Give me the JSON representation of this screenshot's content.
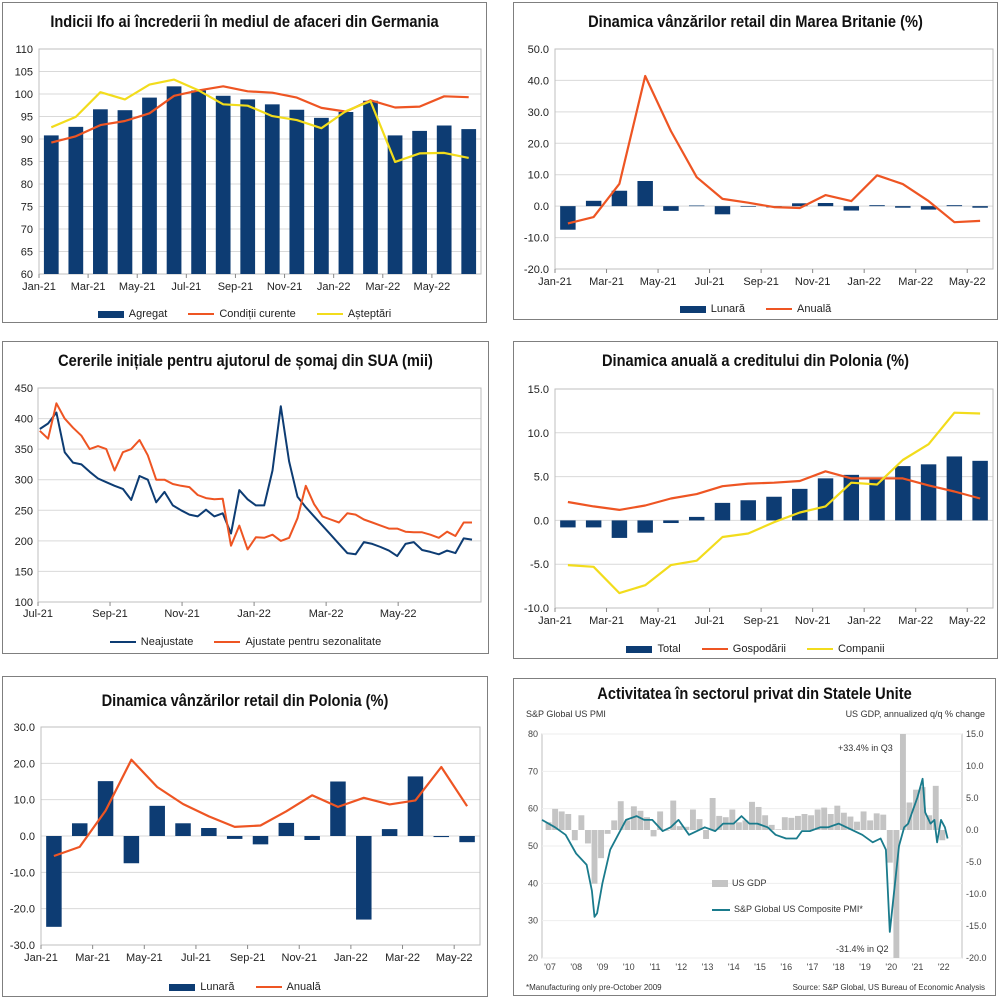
{
  "colors": {
    "navy": "#0d3c73",
    "orange": "#ee5523",
    "yellow": "#f2dc1c",
    "grid": "#d9d9d9",
    "teal": "#1a7b8c",
    "gray": "#c4c4c4"
  },
  "chart_data": [
    {
      "id": "ifo",
      "type": "bar+line",
      "title": "Indicii Ifo ai încrederii în mediul de afaceri din Germania",
      "categories": [
        "Jan-21",
        "Feb-21",
        "Mar-21",
        "Apr-21",
        "May-21",
        "Jun-21",
        "Jul-21",
        "Aug-21",
        "Sep-21",
        "Oct-21",
        "Nov-21",
        "Dec-21",
        "Jan-22",
        "Feb-22",
        "Mar-22",
        "Apr-22",
        "May-22",
        "Jun-22"
      ],
      "tick_labels": [
        "Jan-21",
        "Mar-21",
        "May-21",
        "Jul-21",
        "Sep-21",
        "Nov-21",
        "Jan-22",
        "Mar-22",
        "May-22"
      ],
      "ylim": [
        60,
        110
      ],
      "yticks": [
        60,
        65,
        70,
        75,
        80,
        85,
        90,
        95,
        100,
        105,
        110
      ],
      "ydec": 0,
      "bars": {
        "name": "Agregat",
        "values": [
          90.8,
          92.7,
          96.6,
          96.4,
          99.2,
          101.7,
          100.8,
          99.6,
          98.8,
          97.7,
          96.5,
          94.7,
          96.0,
          98.5,
          90.8,
          91.8,
          93.0,
          92.2
        ]
      },
      "lines": [
        {
          "name": "Condiții curente",
          "color": "orange",
          "values": [
            89.2,
            90.6,
            93.1,
            94.0,
            95.7,
            99.6,
            100.8,
            101.7,
            100.6,
            100.3,
            99.2,
            96.9,
            96.1,
            98.6,
            97.0,
            97.2,
            99.5,
            99.3
          ]
        },
        {
          "name": "Așteptări",
          "color": "yellow",
          "values": [
            92.6,
            94.9,
            100.4,
            98.8,
            102.1,
            103.2,
            100.8,
            97.7,
            97.4,
            95.1,
            94.2,
            92.4,
            96.2,
            98.4,
            84.9,
            86.8,
            86.9,
            85.8
          ]
        }
      ],
      "legend": [
        "Agregat",
        "Condiții curente",
        "Așteptări"
      ]
    },
    {
      "id": "uk",
      "type": "bar+line",
      "title": "Dinamica vânzărilor retail din Marea Britanie (%)",
      "categories": [
        "Jan-21",
        "Feb-21",
        "Mar-21",
        "Apr-21",
        "May-21",
        "Jun-21",
        "Jul-21",
        "Aug-21",
        "Sep-21",
        "Oct-21",
        "Nov-21",
        "Dec-21",
        "Jan-22",
        "Feb-22",
        "Mar-22",
        "Apr-22",
        "May-22"
      ],
      "tick_labels": [
        "Jan-21",
        "Mar-21",
        "May-21",
        "Jul-21",
        "Sep-21",
        "Nov-21",
        "Jan-22",
        "Mar-22",
        "May-22"
      ],
      "ylim": [
        -20,
        50
      ],
      "yticks": [
        -20,
        -10,
        0,
        10,
        20,
        30,
        40,
        50
      ],
      "ydec": 1,
      "bars": {
        "name": "Lunară",
        "values": [
          -7.5,
          1.7,
          4.9,
          8.0,
          -1.5,
          0.2,
          -2.6,
          0.0,
          -0.4,
          0.9,
          1.0,
          -1.4,
          0.3,
          -0.5,
          -1.1,
          0.3,
          -0.5
        ]
      },
      "lines": [
        {
          "name": "Anuală",
          "color": "orange",
          "values": [
            -5.5,
            -3.5,
            7.1,
            41.4,
            23.9,
            9.2,
            2.3,
            1.1,
            -0.3,
            -0.6,
            3.5,
            1.6,
            9.8,
            7.0,
            1.6,
            -5.1,
            -4.7
          ]
        }
      ],
      "legend": [
        "Lunară",
        "Anuală"
      ]
    },
    {
      "id": "us_claims",
      "type": "line",
      "title": "Cererile inițiale pentru ajutorul de șomaj din SUA (mii)",
      "tick_labels": [
        "Jul-21",
        "Sep-21",
        "Nov-21",
        "Jan-22",
        "Mar-22",
        "May-22"
      ],
      "xlim": [
        0,
        12.3
      ],
      "ylim": [
        100,
        450
      ],
      "yticks": [
        100,
        150,
        200,
        250,
        300,
        350,
        400,
        450
      ],
      "ydec": 0,
      "lines": [
        {
          "name": "Neajustate",
          "color": "navy",
          "values": [
            383,
            392,
            410,
            345,
            328,
            325,
            313,
            302,
            296,
            290,
            285,
            267,
            306,
            300,
            263,
            280,
            258,
            250,
            243,
            240,
            251,
            240,
            245,
            212,
            283,
            268,
            258,
            258,
            315,
            420,
            330,
            272,
            255,
            240,
            225,
            210,
            195,
            180,
            178,
            198,
            195,
            190,
            184,
            175,
            195,
            198,
            185,
            182,
            178,
            184,
            180,
            204,
            202
          ]
        },
        {
          "name": "Ajustate pentru sezonalitate",
          "color": "orange",
          "values": [
            380,
            367,
            425,
            400,
            385,
            372,
            350,
            355,
            350,
            315,
            345,
            350,
            365,
            340,
            300,
            300,
            293,
            290,
            288,
            275,
            270,
            268,
            269,
            192,
            225,
            186,
            206,
            205,
            210,
            200,
            205,
            237,
            290,
            260,
            240,
            235,
            230,
            245,
            243,
            235,
            230,
            225,
            220,
            220,
            215,
            214,
            214,
            210,
            205,
            215,
            208,
            230,
            230
          ]
        }
      ],
      "legend": [
        "Neajustate",
        "Ajustate pentru sezonalitate"
      ]
    },
    {
      "id": "pl_credit",
      "type": "bar+line",
      "title": "Dinamica anuală a creditului din Polonia (%)",
      "categories": [
        "Jan-21",
        "Feb-21",
        "Mar-21",
        "Apr-21",
        "May-21",
        "Jun-21",
        "Jul-21",
        "Aug-21",
        "Sep-21",
        "Oct-21",
        "Nov-21",
        "Dec-21",
        "Jan-22",
        "Feb-22",
        "Mar-22",
        "Apr-22",
        "May-22"
      ],
      "tick_labels": [
        "Jan-21",
        "Mar-21",
        "May-21",
        "Jul-21",
        "Sep-21",
        "Nov-21",
        "Jan-22",
        "Mar-22",
        "May-22"
      ],
      "ylim": [
        -10,
        15
      ],
      "yticks": [
        -10,
        -5,
        0,
        5,
        10,
        15
      ],
      "ydec": 1,
      "bars": {
        "name": "Total",
        "values": [
          -0.8,
          -0.8,
          -2.0,
          -1.4,
          -0.3,
          0.4,
          2.0,
          2.3,
          2.7,
          3.6,
          4.8,
          5.2,
          4.8,
          6.2,
          6.4,
          7.3,
          6.8
        ]
      },
      "lines": [
        {
          "name": "Gospodării",
          "color": "orange",
          "values": [
            2.1,
            1.6,
            1.2,
            1.7,
            2.5,
            3.0,
            3.9,
            4.2,
            4.3,
            4.5,
            5.6,
            4.8,
            4.8,
            4.8,
            4.0,
            3.3,
            2.5
          ]
        },
        {
          "name": "Companii",
          "color": "yellow",
          "values": [
            -5.1,
            -5.3,
            -8.3,
            -7.4,
            -5.1,
            -4.6,
            -1.9,
            -1.5,
            -0.2,
            0.9,
            1.6,
            4.3,
            4.1,
            6.9,
            8.7,
            12.3,
            12.2
          ]
        }
      ],
      "legend": [
        "Total",
        "Gospodării",
        "Companii"
      ]
    },
    {
      "id": "pl_retail",
      "type": "bar+line",
      "title": "Dinamica vânzărilor retail din Polonia (%)",
      "categories": [
        "Jan-21",
        "Feb-21",
        "Mar-21",
        "Apr-21",
        "May-21",
        "Jun-21",
        "Jul-21",
        "Aug-21",
        "Sep-21",
        "Oct-21",
        "Nov-21",
        "Dec-21",
        "Jan-22",
        "Feb-22",
        "Mar-22",
        "Apr-22",
        "May-22"
      ],
      "tick_labels": [
        "Jan-21",
        "Mar-21",
        "May-21",
        "Jul-21",
        "Sep-21",
        "Nov-21",
        "Jan-22",
        "Mar-22",
        "May-22"
      ],
      "ylim": [
        -30,
        30
      ],
      "yticks": [
        -30,
        -20,
        -10,
        0,
        10,
        20,
        30
      ],
      "ydec": 1,
      "bars": {
        "name": "Lunară",
        "values": [
          -25.0,
          3.5,
          15.1,
          -7.5,
          8.3,
          3.5,
          2.2,
          -0.8,
          -2.3,
          3.6,
          -1.1,
          15.0,
          -23.0,
          1.9,
          16.4,
          -0.3,
          -1.7
        ]
      },
      "lines": [
        {
          "name": "Anuală",
          "color": "orange",
          "values": [
            -5.5,
            -3.0,
            7.0,
            21.0,
            13.5,
            8.8,
            5.4,
            2.5,
            2.9,
            6.8,
            11.2,
            8.0,
            10.5,
            8.7,
            9.8,
            19.0,
            8.2
          ]
        }
      ],
      "legend": [
        "Lunară",
        "Anuală"
      ]
    },
    {
      "id": "us_pmi",
      "type": "bar+line",
      "title": "Activitatea în sectorul privat din Statele Unite",
      "left_axis_title": "S&P Global US PMI",
      "right_axis_title": "US GDP, annualized q/q % change",
      "left_yticks": [
        20,
        30,
        40,
        50,
        60,
        70,
        80
      ],
      "right_yticks": [
        "-20.0",
        "-15.0",
        "-10.0",
        "-5.0",
        "0.0",
        "5.0",
        "10.0",
        "15.0"
      ],
      "x_ticks": [
        "'07",
        "'08",
        "'09",
        "'10",
        "'11",
        "'12",
        "'13",
        "'14",
        "'15",
        "'16",
        "'17",
        "'18",
        "'19",
        "'20",
        "'21",
        "'22"
      ],
      "annotations": [
        "+33.4% in Q3",
        "-31.4% in Q2"
      ],
      "gdp_q": [
        1.2,
        3.3,
        2.9,
        2.5,
        -1.6,
        2.3,
        -2.1,
        -8.4,
        -4.4,
        -0.6,
        1.5,
        4.5,
        1.5,
        3.7,
        3.0,
        2.0,
        -1.0,
        2.9,
        -0.1,
        4.6,
        0.6,
        0.5,
        3.2,
        1.7,
        -1.4,
        5.0,
        2.2,
        2.0,
        3.2,
        1.2,
        1.5,
        4.4,
        3.6,
        2.3,
        0.8,
        0.1,
        2.0,
        1.9,
        2.2,
        2.5,
        2.3,
        3.2,
        3.5,
        2.5,
        3.8,
        2.7,
        2.1,
        1.3,
        2.9,
        1.5,
        2.6,
        2.4,
        -5.1,
        -31.4,
        33.4,
        4.3,
        6.3,
        6.7,
        2.3,
        6.9,
        -1.6
      ],
      "pmi_points": [
        [
          2007.0,
          57
        ],
        [
          2007.5,
          55
        ],
        [
          2007.9,
          53
        ],
        [
          2008.3,
          48
        ],
        [
          2008.7,
          45
        ],
        [
          2008.9,
          38
        ],
        [
          2009.0,
          31
        ],
        [
          2009.1,
          32
        ],
        [
          2009.3,
          40
        ],
        [
          2009.6,
          49
        ],
        [
          2009.9,
          53
        ],
        [
          2010.2,
          57
        ],
        [
          2010.6,
          58
        ],
        [
          2010.9,
          57
        ],
        [
          2011.2,
          57
        ],
        [
          2011.6,
          54
        ],
        [
          2011.9,
          55
        ],
        [
          2012.2,
          57
        ],
        [
          2012.6,
          53
        ],
        [
          2012.9,
          54
        ],
        [
          2013.2,
          55
        ],
        [
          2013.6,
          54
        ],
        [
          2013.9,
          56
        ],
        [
          2014.3,
          56
        ],
        [
          2014.6,
          58
        ],
        [
          2014.9,
          56
        ],
        [
          2015.2,
          56
        ],
        [
          2015.6,
          55
        ],
        [
          2015.9,
          53
        ],
        [
          2016.3,
          52
        ],
        [
          2016.7,
          52
        ],
        [
          2016.9,
          54
        ],
        [
          2017.2,
          54
        ],
        [
          2017.6,
          55
        ],
        [
          2017.9,
          55
        ],
        [
          2018.3,
          56
        ],
        [
          2018.6,
          55
        ],
        [
          2018.9,
          54
        ],
        [
          2019.2,
          53
        ],
        [
          2019.6,
          51
        ],
        [
          2019.9,
          52
        ],
        [
          2020.1,
          49
        ],
        [
          2020.25,
          27
        ],
        [
          2020.4,
          37
        ],
        [
          2020.6,
          50
        ],
        [
          2020.8,
          55
        ],
        [
          2020.95,
          56
        ],
        [
          2021.1,
          59
        ],
        [
          2021.3,
          63
        ],
        [
          2021.5,
          68
        ],
        [
          2021.6,
          59
        ],
        [
          2021.8,
          56
        ],
        [
          2021.95,
          57
        ],
        [
          2022.05,
          51
        ],
        [
          2022.2,
          57
        ],
        [
          2022.35,
          55
        ],
        [
          2022.45,
          52
        ]
      ],
      "legend": [
        "US GDP",
        "S&P Global US Composite PMI*"
      ],
      "footnote": "*Manufacturing only pre-October 2009",
      "source": "Source: S&P Global, US Bureau of Economic Analysis"
    }
  ]
}
